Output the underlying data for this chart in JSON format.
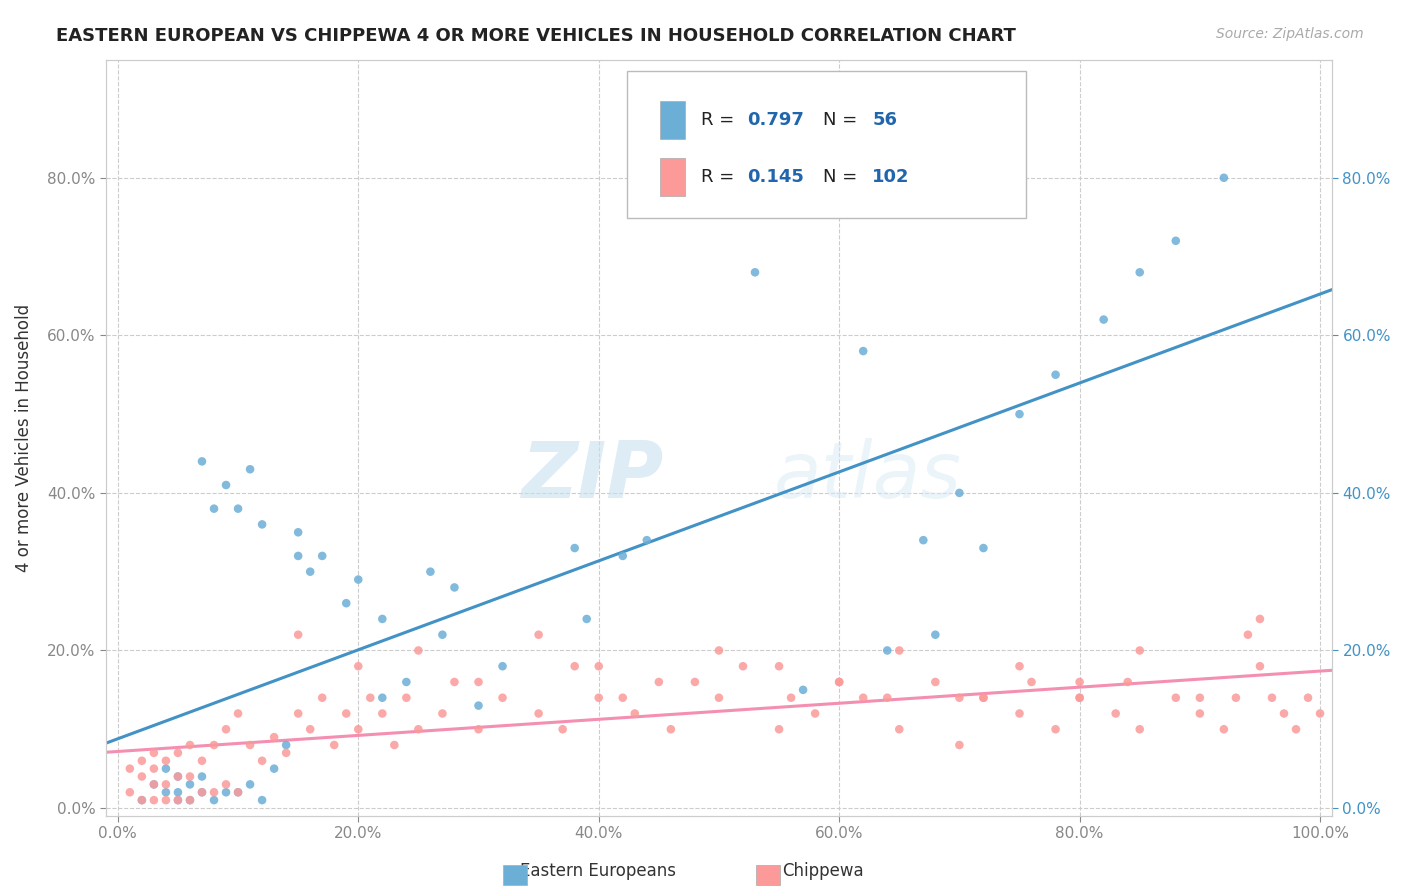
{
  "title": "EASTERN EUROPEAN VS CHIPPEWA 4 OR MORE VEHICLES IN HOUSEHOLD CORRELATION CHART",
  "source_text": "Source: ZipAtlas.com",
  "ylabel": "4 or more Vehicles in Household",
  "xmin": 0.0,
  "xmax": 1.0,
  "ymin": 0.0,
  "ymax": 0.9,
  "xtick_labels": [
    "0.0%",
    "20.0%",
    "40.0%",
    "60.0%",
    "80.0%",
    "100.0%"
  ],
  "xtick_vals": [
    0.0,
    0.2,
    0.4,
    0.6,
    0.8,
    1.0
  ],
  "ytick_labels": [
    "0.0%",
    "20.0%",
    "40.0%",
    "60.0%",
    "80.0%"
  ],
  "ytick_vals": [
    0.0,
    0.2,
    0.4,
    0.6,
    0.8
  ],
  "legend_R1": "0.797",
  "legend_N1": "56",
  "legend_R2": "0.145",
  "legend_N2": "102",
  "color_blue": "#6baed6",
  "color_blue_line": "#4292c6",
  "color_pink": "#fb9a99",
  "color_pink_line": "#f48fb1",
  "scatter_blue_x": [
    0.02,
    0.03,
    0.04,
    0.04,
    0.05,
    0.05,
    0.05,
    0.06,
    0.06,
    0.07,
    0.07,
    0.07,
    0.08,
    0.08,
    0.09,
    0.09,
    0.1,
    0.1,
    0.11,
    0.11,
    0.12,
    0.12,
    0.13,
    0.14,
    0.15,
    0.15,
    0.16,
    0.17,
    0.19,
    0.2,
    0.22,
    0.22,
    0.24,
    0.26,
    0.27,
    0.28,
    0.3,
    0.32,
    0.38,
    0.39,
    0.42,
    0.44,
    0.53,
    0.57,
    0.62,
    0.64,
    0.67,
    0.68,
    0.7,
    0.72,
    0.75,
    0.78,
    0.82,
    0.85,
    0.88,
    0.92
  ],
  "scatter_blue_y": [
    0.01,
    0.03,
    0.02,
    0.05,
    0.01,
    0.02,
    0.04,
    0.01,
    0.03,
    0.02,
    0.04,
    0.44,
    0.01,
    0.38,
    0.02,
    0.41,
    0.02,
    0.38,
    0.03,
    0.43,
    0.01,
    0.36,
    0.05,
    0.08,
    0.32,
    0.35,
    0.3,
    0.32,
    0.26,
    0.29,
    0.14,
    0.24,
    0.16,
    0.3,
    0.22,
    0.28,
    0.13,
    0.18,
    0.33,
    0.24,
    0.32,
    0.34,
    0.68,
    0.15,
    0.58,
    0.2,
    0.34,
    0.22,
    0.4,
    0.33,
    0.5,
    0.55,
    0.62,
    0.68,
    0.72,
    0.8
  ],
  "scatter_pink_x": [
    0.01,
    0.01,
    0.02,
    0.02,
    0.02,
    0.03,
    0.03,
    0.03,
    0.03,
    0.04,
    0.04,
    0.04,
    0.05,
    0.05,
    0.05,
    0.06,
    0.06,
    0.06,
    0.07,
    0.07,
    0.08,
    0.08,
    0.09,
    0.09,
    0.1,
    0.1,
    0.11,
    0.12,
    0.13,
    0.14,
    0.15,
    0.16,
    0.17,
    0.18,
    0.19,
    0.2,
    0.21,
    0.22,
    0.23,
    0.24,
    0.25,
    0.27,
    0.28,
    0.3,
    0.32,
    0.35,
    0.37,
    0.4,
    0.43,
    0.46,
    0.5,
    0.55,
    0.58,
    0.62,
    0.65,
    0.7,
    0.72,
    0.75,
    0.78,
    0.8,
    0.83,
    0.85,
    0.88,
    0.9,
    0.92,
    0.93,
    0.94,
    0.95,
    0.96,
    0.97,
    0.98,
    0.99,
    1.0,
    0.15,
    0.2,
    0.25,
    0.3,
    0.35,
    0.4,
    0.45,
    0.5,
    0.55,
    0.6,
    0.65,
    0.7,
    0.75,
    0.8,
    0.85,
    0.9,
    0.95,
    0.38,
    0.42,
    0.48,
    0.52,
    0.56,
    0.6,
    0.64,
    0.68,
    0.72,
    0.76,
    0.8,
    0.84
  ],
  "scatter_pink_y": [
    0.02,
    0.05,
    0.01,
    0.04,
    0.06,
    0.01,
    0.03,
    0.05,
    0.07,
    0.01,
    0.03,
    0.06,
    0.01,
    0.04,
    0.07,
    0.01,
    0.04,
    0.08,
    0.02,
    0.06,
    0.02,
    0.08,
    0.03,
    0.1,
    0.02,
    0.12,
    0.08,
    0.06,
    0.09,
    0.07,
    0.12,
    0.1,
    0.14,
    0.08,
    0.12,
    0.1,
    0.14,
    0.12,
    0.08,
    0.14,
    0.1,
    0.12,
    0.16,
    0.1,
    0.14,
    0.12,
    0.1,
    0.14,
    0.12,
    0.1,
    0.14,
    0.1,
    0.12,
    0.14,
    0.1,
    0.08,
    0.14,
    0.12,
    0.1,
    0.14,
    0.12,
    0.1,
    0.14,
    0.12,
    0.1,
    0.14,
    0.22,
    0.24,
    0.14,
    0.12,
    0.1,
    0.14,
    0.12,
    0.22,
    0.18,
    0.2,
    0.16,
    0.22,
    0.18,
    0.16,
    0.2,
    0.18,
    0.16,
    0.2,
    0.14,
    0.18,
    0.16,
    0.2,
    0.14,
    0.18,
    0.18,
    0.14,
    0.16,
    0.18,
    0.14,
    0.16,
    0.14,
    0.16,
    0.14,
    0.16,
    0.14,
    0.16
  ],
  "watermark_zip": "ZIP",
  "watermark_atlas": "atlas",
  "background_color": "#ffffff",
  "grid_color": "#cccccc"
}
